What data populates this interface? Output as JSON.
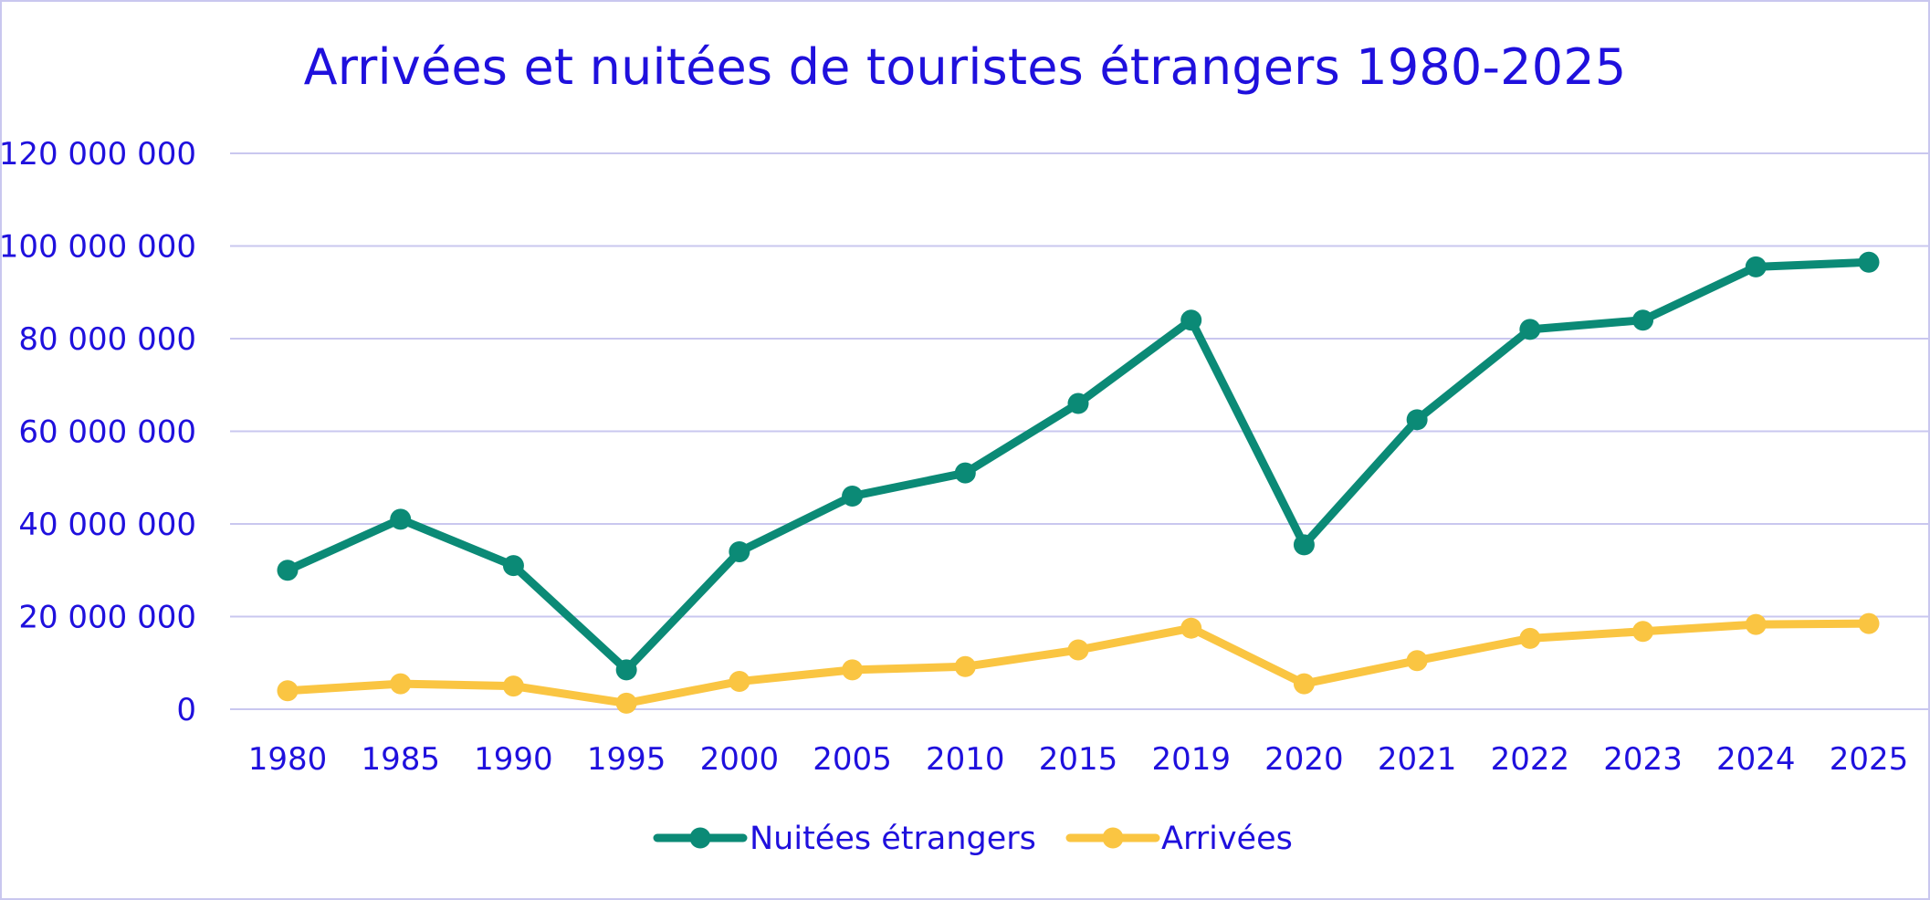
{
  "colors": {
    "text": "#1f10dd",
    "grid": "#c9c7ef",
    "nuitees": "#0b8a76",
    "arrivees": "#fac542"
  },
  "chart_data": {
    "type": "line",
    "title": "Arrivées et nuitées de touristes étrangers 1980-2025",
    "xlabel": "",
    "ylabel": "",
    "categories": [
      "1980",
      "1985",
      "1990",
      "1995",
      "2000",
      "2005",
      "2010",
      "2015",
      "2019",
      "2020",
      "2021",
      "2022",
      "2023",
      "2024",
      "2025"
    ],
    "yticks": [
      "0",
      "20 000 000",
      "40 000 000",
      "60 000 000",
      "80 000 000",
      "100 000 000",
      "120 000 000"
    ],
    "ylim": [
      0,
      120000000
    ],
    "grid": true,
    "legend_position": "bottom",
    "series": [
      {
        "name": "Nuitées étrangers",
        "color_key": "nuitees",
        "values": [
          30000000,
          41000000,
          31000000,
          8500000,
          34000000,
          46000000,
          51000000,
          66000000,
          84000000,
          35500000,
          62500000,
          82000000,
          84000000,
          95500000,
          96500000
        ]
      },
      {
        "name": "Arrivées",
        "color_key": "arrivees",
        "values": [
          4000000,
          5500000,
          5000000,
          1300000,
          6000000,
          8500000,
          9200000,
          12800000,
          17500000,
          5500000,
          10500000,
          15300000,
          16800000,
          18300000,
          18500000
        ]
      }
    ]
  }
}
